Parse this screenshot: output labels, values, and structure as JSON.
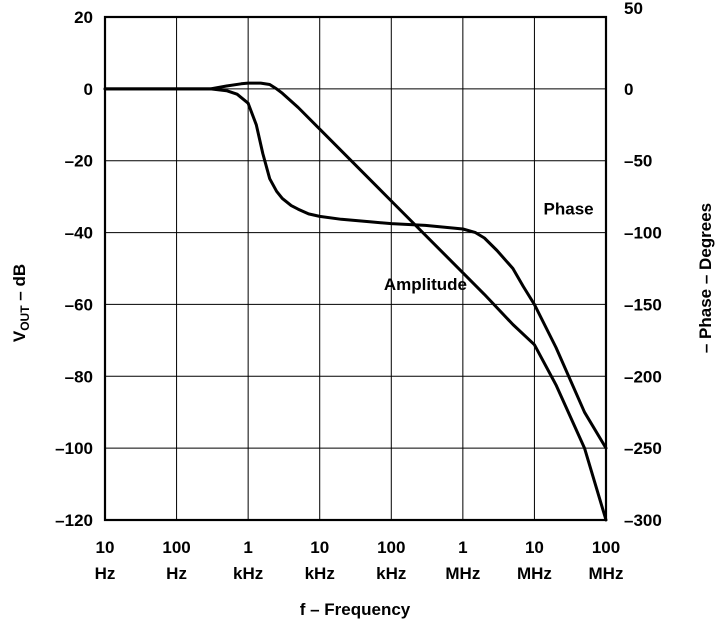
{
  "chart_data": {
    "type": "line",
    "xlabel": "f – Frequency",
    "x_scale": "log",
    "x_range": [
      10,
      100000000
    ],
    "x_ticks": [
      {
        "value": 10,
        "line1": "10",
        "line2": "Hz"
      },
      {
        "value": 100,
        "line1": "100",
        "line2": "Hz"
      },
      {
        "value": 1000,
        "line1": "1",
        "line2": "kHz"
      },
      {
        "value": 10000,
        "line1": "10",
        "line2": "kHz"
      },
      {
        "value": 100000,
        "line1": "100",
        "line2": "kHz"
      },
      {
        "value": 1000000,
        "line1": "1",
        "line2": "MHz"
      },
      {
        "value": 10000000,
        "line1": "10",
        "line2": "MHz"
      },
      {
        "value": 100000000,
        "line1": "100",
        "line2": "MHz"
      }
    ],
    "ylabel_left": {
      "main": "V",
      "sub": "OUT",
      "rest": " – dB"
    },
    "ylim_left": [
      -120,
      20
    ],
    "y_ticks_left": [
      "20",
      "0",
      "–20",
      "–40",
      "–60",
      "–80",
      "–100",
      "–120"
    ],
    "ylabel_right": "– Phase – Degrees",
    "ylim_right": [
      -300,
      50
    ],
    "y_ticks_right": [
      "50",
      "0",
      "–50",
      "–100",
      "–150",
      "–200",
      "–250",
      "–300"
    ],
    "grid": true,
    "series": [
      {
        "name": "Amplitude",
        "axis": "left",
        "color": "#000000",
        "x": [
          10,
          100,
          300,
          500,
          700,
          1000,
          1300,
          1600,
          2000,
          2500,
          3000,
          4000,
          5000,
          7000,
          10000,
          20000,
          50000,
          100000,
          300000,
          1000000,
          1500000,
          2000000,
          3000000,
          5000000,
          7000000,
          10000000,
          20000000,
          50000000,
          100000000
        ],
        "y": [
          0,
          0,
          0,
          -0.5,
          -1.5,
          -4,
          -10,
          -18,
          -25,
          -28.5,
          -30.5,
          -32.5,
          -33.5,
          -34.8,
          -35.5,
          -36.3,
          -37,
          -37.5,
          -38,
          -39,
          -40,
          -41.5,
          -45,
          -50,
          -55,
          -60,
          -72,
          -90,
          -100
        ]
      },
      {
        "name": "Phase",
        "axis": "right",
        "color": "#000000",
        "x": [
          10,
          100,
          300,
          500,
          800,
          1000,
          1500,
          2000,
          2500,
          3000,
          5000,
          10000,
          100000,
          1000000,
          2000000,
          5000000,
          10000000,
          20000000,
          50000000,
          100000000
        ],
        "y": [
          0,
          0,
          0,
          2,
          3.5,
          4,
          4,
          3,
          0,
          -3,
          -13,
          -28,
          -78,
          -128,
          -143,
          -164,
          -178,
          -206,
          -250,
          -300
        ]
      }
    ],
    "annotations": [
      {
        "text": "Phase",
        "x": 30000000,
        "y_left": -35
      },
      {
        "text": "Amplitude",
        "x": 300000,
        "y_left": -56
      }
    ]
  }
}
